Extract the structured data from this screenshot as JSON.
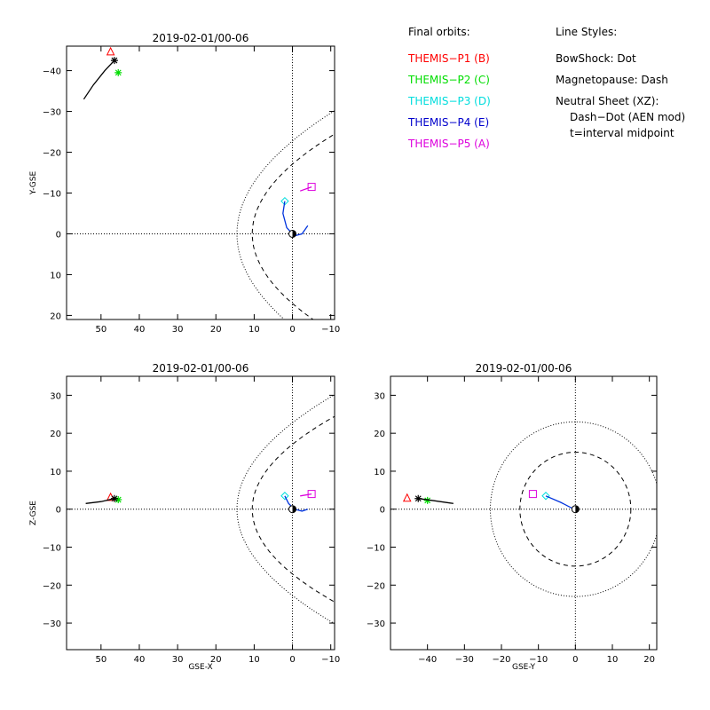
{
  "legend": {
    "orbits_title": "Final orbits:",
    "probes": [
      {
        "label": "THEMIS−P1 (B)",
        "color": "#ff0000"
      },
      {
        "label": "THEMIS−P2 (C)",
        "color": "#00dd00"
      },
      {
        "label": "THEMIS−P3 (D)",
        "color": "#00dddd"
      },
      {
        "label": "THEMIS−P4 (E)",
        "color": "#0000cc"
      },
      {
        "label": "THEMIS−P5 (A)",
        "color": "#dd00dd"
      }
    ],
    "styles_title": "Line Styles:",
    "styles": [
      "BowShock: Dot",
      "Magnetopause: Dash",
      "Neutral Sheet (XZ):",
      "Dash−Dot (AEN mod)",
      "t=interval midpoint"
    ]
  },
  "chart_data": [
    {
      "type": "scatter",
      "title": "2019-02-01/00-06",
      "xlabel": "",
      "ylabel": "Y-GSE",
      "xlim": [
        59,
        -11
      ],
      "ylim": [
        21,
        -46
      ],
      "xticks": [
        50,
        40,
        30,
        20,
        10,
        0,
        -10
      ],
      "yticks": [
        -40,
        -30,
        -20,
        -10,
        0,
        10,
        20
      ],
      "xtick_labels": [
        "50",
        "40",
        "30",
        "20",
        "10",
        "0",
        "−10"
      ],
      "ytick_labels": [
        "−40",
        "−30",
        "−20",
        "−10",
        "0",
        "10",
        "20"
      ],
      "series": [
        {
          "probe": "P1",
          "color": "#ff0000",
          "marker": "triangle",
          "points": [
            [
              47.5,
              -44.5
            ]
          ]
        },
        {
          "probe": "P2",
          "color": "#00dd00",
          "marker": "asterisk",
          "points": [
            [
              45.5,
              -39.5
            ]
          ]
        },
        {
          "probe": "black",
          "color": "#000000",
          "marker": "asterisk",
          "points": [
            [
              54.5,
              -33
            ],
            [
              52,
              -36.5
            ],
            [
              49,
              -40
            ],
            [
              46.5,
              -42.5
            ]
          ]
        },
        {
          "probe": "P3",
          "color": "#00dddd",
          "marker": "diamond",
          "points": [
            [
              2,
              -8
            ]
          ]
        },
        {
          "probe": "P4",
          "color": "#0033dd",
          "marker": "none",
          "points": [
            [
              2,
              -8
            ],
            [
              2.5,
              -5
            ],
            [
              1.5,
              -1.5
            ],
            [
              -0.5,
              0.5
            ],
            [
              -2.5,
              0
            ],
            [
              -4,
              -2
            ]
          ]
        },
        {
          "probe": "P5",
          "color": "#dd00dd",
          "marker": "square",
          "points": [
            [
              -2,
              -10.5
            ],
            [
              -5,
              -11.5
            ]
          ]
        }
      ],
      "bowshock": "dot",
      "magnetopause": "dash",
      "earth": [
        0,
        0
      ]
    },
    {
      "type": "scatter",
      "title": "2019-02-01/00-06",
      "xlabel": "GSE-X",
      "ylabel": "Z-GSE",
      "xlim": [
        59,
        -11
      ],
      "ylim": [
        -37,
        35
      ],
      "xticks": [
        50,
        40,
        30,
        20,
        10,
        0,
        -10
      ],
      "yticks": [
        -30,
        -20,
        -10,
        0,
        10,
        20,
        30
      ],
      "xtick_labels": [
        "50",
        "40",
        "30",
        "20",
        "10",
        "0",
        "−10"
      ],
      "ytick_labels": [
        "−30",
        "−20",
        "−10",
        "0",
        "10",
        "20",
        "30"
      ],
      "series": [
        {
          "probe": "P1",
          "color": "#ff0000",
          "marker": "triangle",
          "points": [
            [
              47.5,
              3
            ]
          ]
        },
        {
          "probe": "P2",
          "color": "#00dd00",
          "marker": "asterisk",
          "points": [
            [
              45.5,
              2.5
            ]
          ]
        },
        {
          "probe": "black",
          "color": "#000000",
          "marker": "asterisk",
          "points": [
            [
              54,
              1.5
            ],
            [
              50,
              2
            ],
            [
              46.5,
              2.8
            ]
          ]
        },
        {
          "probe": "P3",
          "color": "#00dddd",
          "marker": "diamond",
          "points": [
            [
              2,
              3.5
            ]
          ]
        },
        {
          "probe": "P4",
          "color": "#0033dd",
          "marker": "none",
          "points": [
            [
              2,
              3.5
            ],
            [
              1,
              1.5
            ],
            [
              -0.5,
              0
            ],
            [
              -2.5,
              -0.5
            ],
            [
              -4,
              0
            ]
          ]
        },
        {
          "probe": "P5",
          "color": "#dd00dd",
          "marker": "square",
          "points": [
            [
              -2,
              3.5
            ],
            [
              -5,
              4
            ]
          ]
        }
      ],
      "bowshock": "dot",
      "magnetopause": "dash",
      "earth": [
        0,
        0
      ]
    },
    {
      "type": "scatter",
      "title": "2019-02-01/00-06",
      "xlabel": "GSE-Y",
      "ylabel": "",
      "xlim": [
        -50,
        22
      ],
      "ylim": [
        -37,
        35
      ],
      "xticks": [
        -40,
        -30,
        -20,
        -10,
        0,
        10,
        20
      ],
      "yticks": [
        -30,
        -20,
        -10,
        0,
        10,
        20,
        30
      ],
      "xtick_labels": [
        "−40",
        "−30",
        "−20",
        "−10",
        "0",
        "10",
        "20"
      ],
      "ytick_labels": [
        "−30",
        "−20",
        "−10",
        "0",
        "10",
        "20",
        "30"
      ],
      "series": [
        {
          "probe": "P1",
          "color": "#ff0000",
          "marker": "triangle",
          "points": [
            [
              -45.5,
              2.8
            ]
          ]
        },
        {
          "probe": "P2",
          "color": "#00dd00",
          "marker": "asterisk",
          "points": [
            [
              -40,
              2.3
            ]
          ]
        },
        {
          "probe": "black",
          "color": "#000000",
          "marker": "asterisk",
          "points": [
            [
              -33,
              1.5
            ],
            [
              -38,
              2.2
            ],
            [
              -42.5,
              2.8
            ]
          ]
        },
        {
          "probe": "P3",
          "color": "#00dddd",
          "marker": "diamond",
          "points": [
            [
              -8,
              3.5
            ]
          ]
        },
        {
          "probe": "P4",
          "color": "#0033dd",
          "marker": "none",
          "points": [
            [
              -8,
              3.5
            ],
            [
              -4,
              1.8
            ],
            [
              -1,
              0.3
            ],
            [
              0,
              0
            ]
          ]
        },
        {
          "probe": "P5",
          "color": "#dd00dd",
          "marker": "square",
          "points": [
            [
              -11.5,
              4
            ]
          ]
        }
      ],
      "bowshock_radius": 23,
      "magnetopause_radius": 15,
      "earth": [
        0,
        0
      ]
    }
  ]
}
